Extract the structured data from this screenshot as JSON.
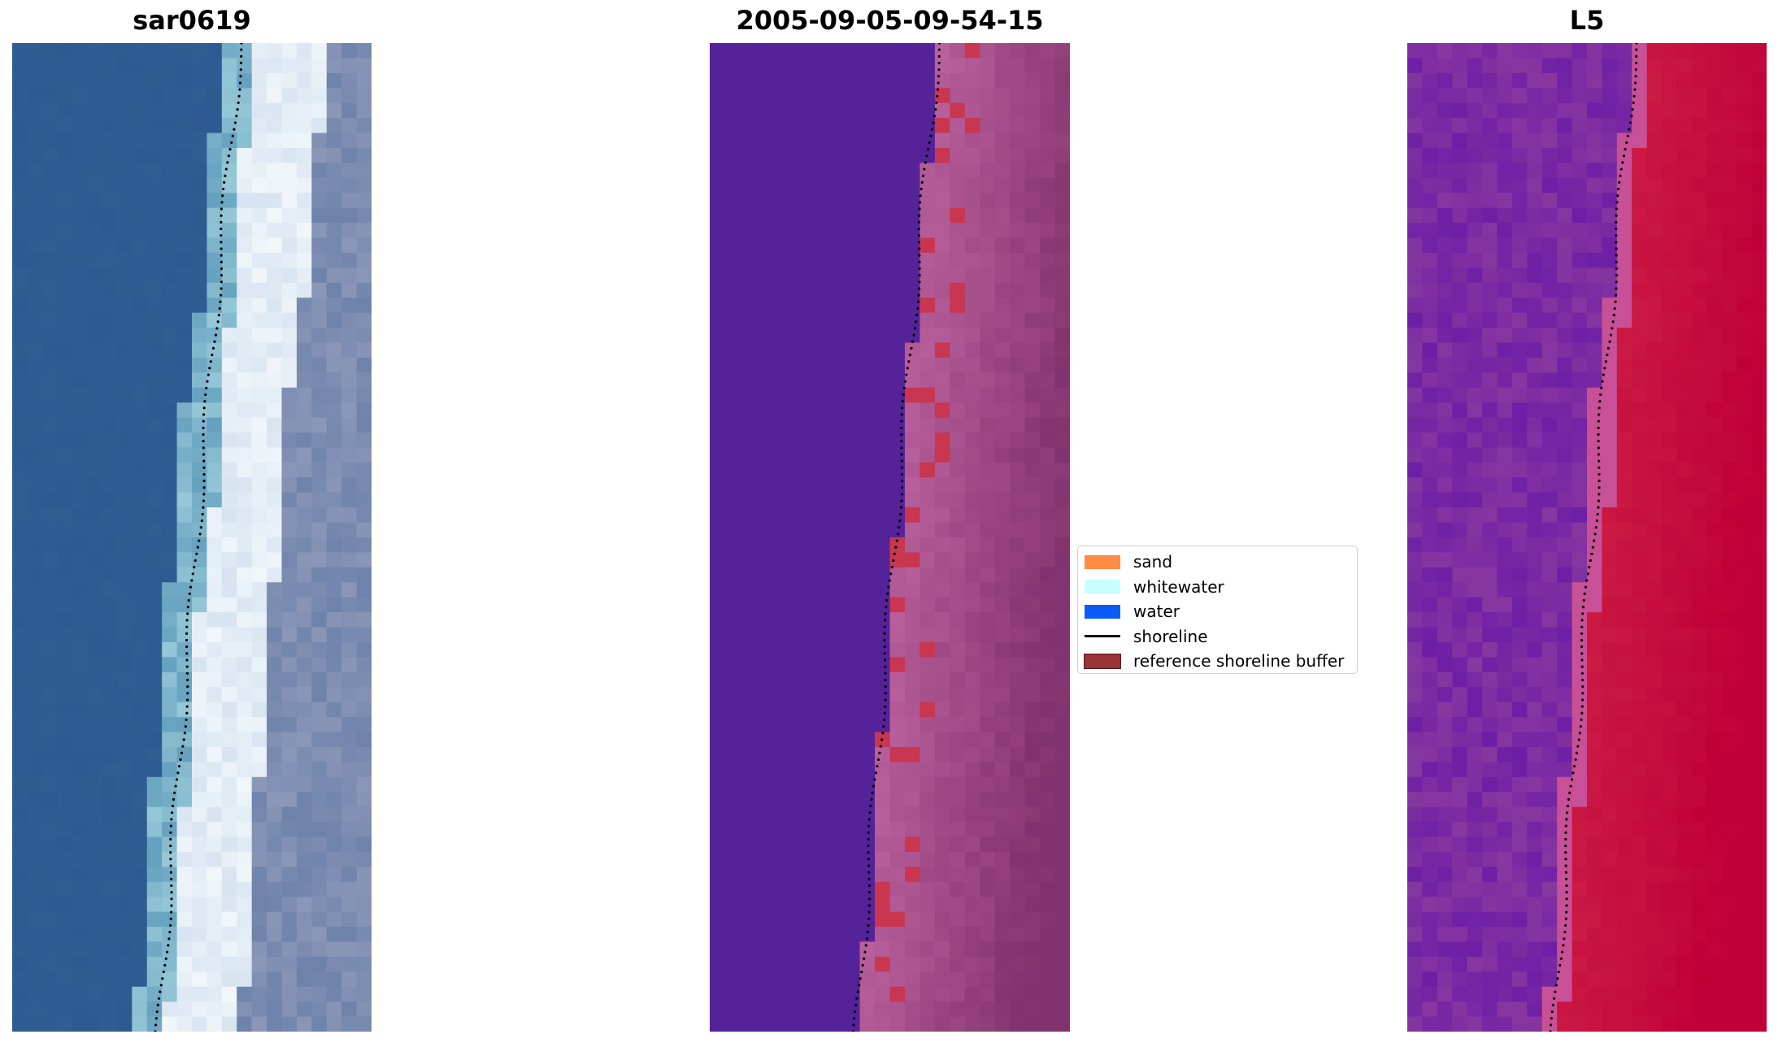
{
  "titles": {
    "left": "sar0619",
    "center": "2005-09-05-09-54-15",
    "right": "L5"
  },
  "legend": {
    "items": [
      {
        "label": "sand",
        "color": "#ff8c42",
        "kind": "patch"
      },
      {
        "label": "whitewater",
        "color": "#c8ffff",
        "kind": "patch"
      },
      {
        "label": "water",
        "color": "#0a5cf5",
        "kind": "patch"
      },
      {
        "label": "shoreline",
        "color": "#000000",
        "kind": "line"
      },
      {
        "label": "reference shoreline buffer",
        "color": "#9a3338",
        "kind": "patch"
      }
    ]
  },
  "colors": {
    "rgb_water": "#2c5b91",
    "classified_water": "#55229a",
    "classified_land": "#b25c9a",
    "buffer": "#c83650",
    "index_water": "#7020a8",
    "index_land": "#c00038"
  }
}
